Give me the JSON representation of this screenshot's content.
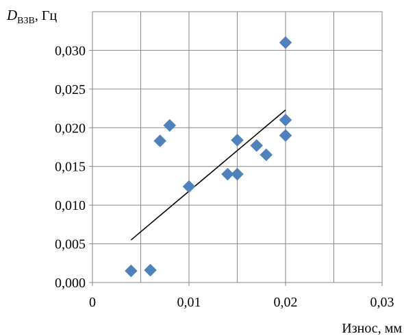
{
  "chart_data": {
    "type": "scatter",
    "title": "",
    "ylabel_main": "D",
    "ylabel_sub": "ВЗВ",
    "ylabel_unit": ", Гц",
    "xlabel": "Износ, мм",
    "xlim": [
      0,
      0.03
    ],
    "ylim": [
      0,
      0.035
    ],
    "x_ticks": [
      {
        "value": 0,
        "label": "0"
      },
      {
        "value": 0.01,
        "label": "0,01"
      },
      {
        "value": 0.02,
        "label": "0,02"
      },
      {
        "value": 0.03,
        "label": "0,03"
      }
    ],
    "x_grid": [
      0,
      0.005,
      0.01,
      0.015,
      0.02,
      0.025,
      0.03
    ],
    "y_ticks": [
      {
        "value": 0,
        "label": "0,000"
      },
      {
        "value": 0.005,
        "label": "0,005"
      },
      {
        "value": 0.01,
        "label": "0,010"
      },
      {
        "value": 0.015,
        "label": "0,015"
      },
      {
        "value": 0.02,
        "label": "0,020"
      },
      {
        "value": 0.025,
        "label": "0,025"
      },
      {
        "value": 0.03,
        "label": "0,030"
      }
    ],
    "grid": true,
    "marker_color": "#4f81bd",
    "trend_color": "#000000",
    "points": [
      {
        "x": 0.004,
        "y": 0.0015
      },
      {
        "x": 0.006,
        "y": 0.0016
      },
      {
        "x": 0.007,
        "y": 0.0183
      },
      {
        "x": 0.008,
        "y": 0.0203
      },
      {
        "x": 0.01,
        "y": 0.0124
      },
      {
        "x": 0.014,
        "y": 0.014
      },
      {
        "x": 0.015,
        "y": 0.014
      },
      {
        "x": 0.015,
        "y": 0.0184
      },
      {
        "x": 0.017,
        "y": 0.0177
      },
      {
        "x": 0.018,
        "y": 0.0165
      },
      {
        "x": 0.02,
        "y": 0.019
      },
      {
        "x": 0.02,
        "y": 0.021
      },
      {
        "x": 0.02,
        "y": 0.031
      }
    ],
    "trendline": {
      "x1": 0.004,
      "y1": 0.0055,
      "x2": 0.02,
      "y2": 0.0223
    }
  }
}
